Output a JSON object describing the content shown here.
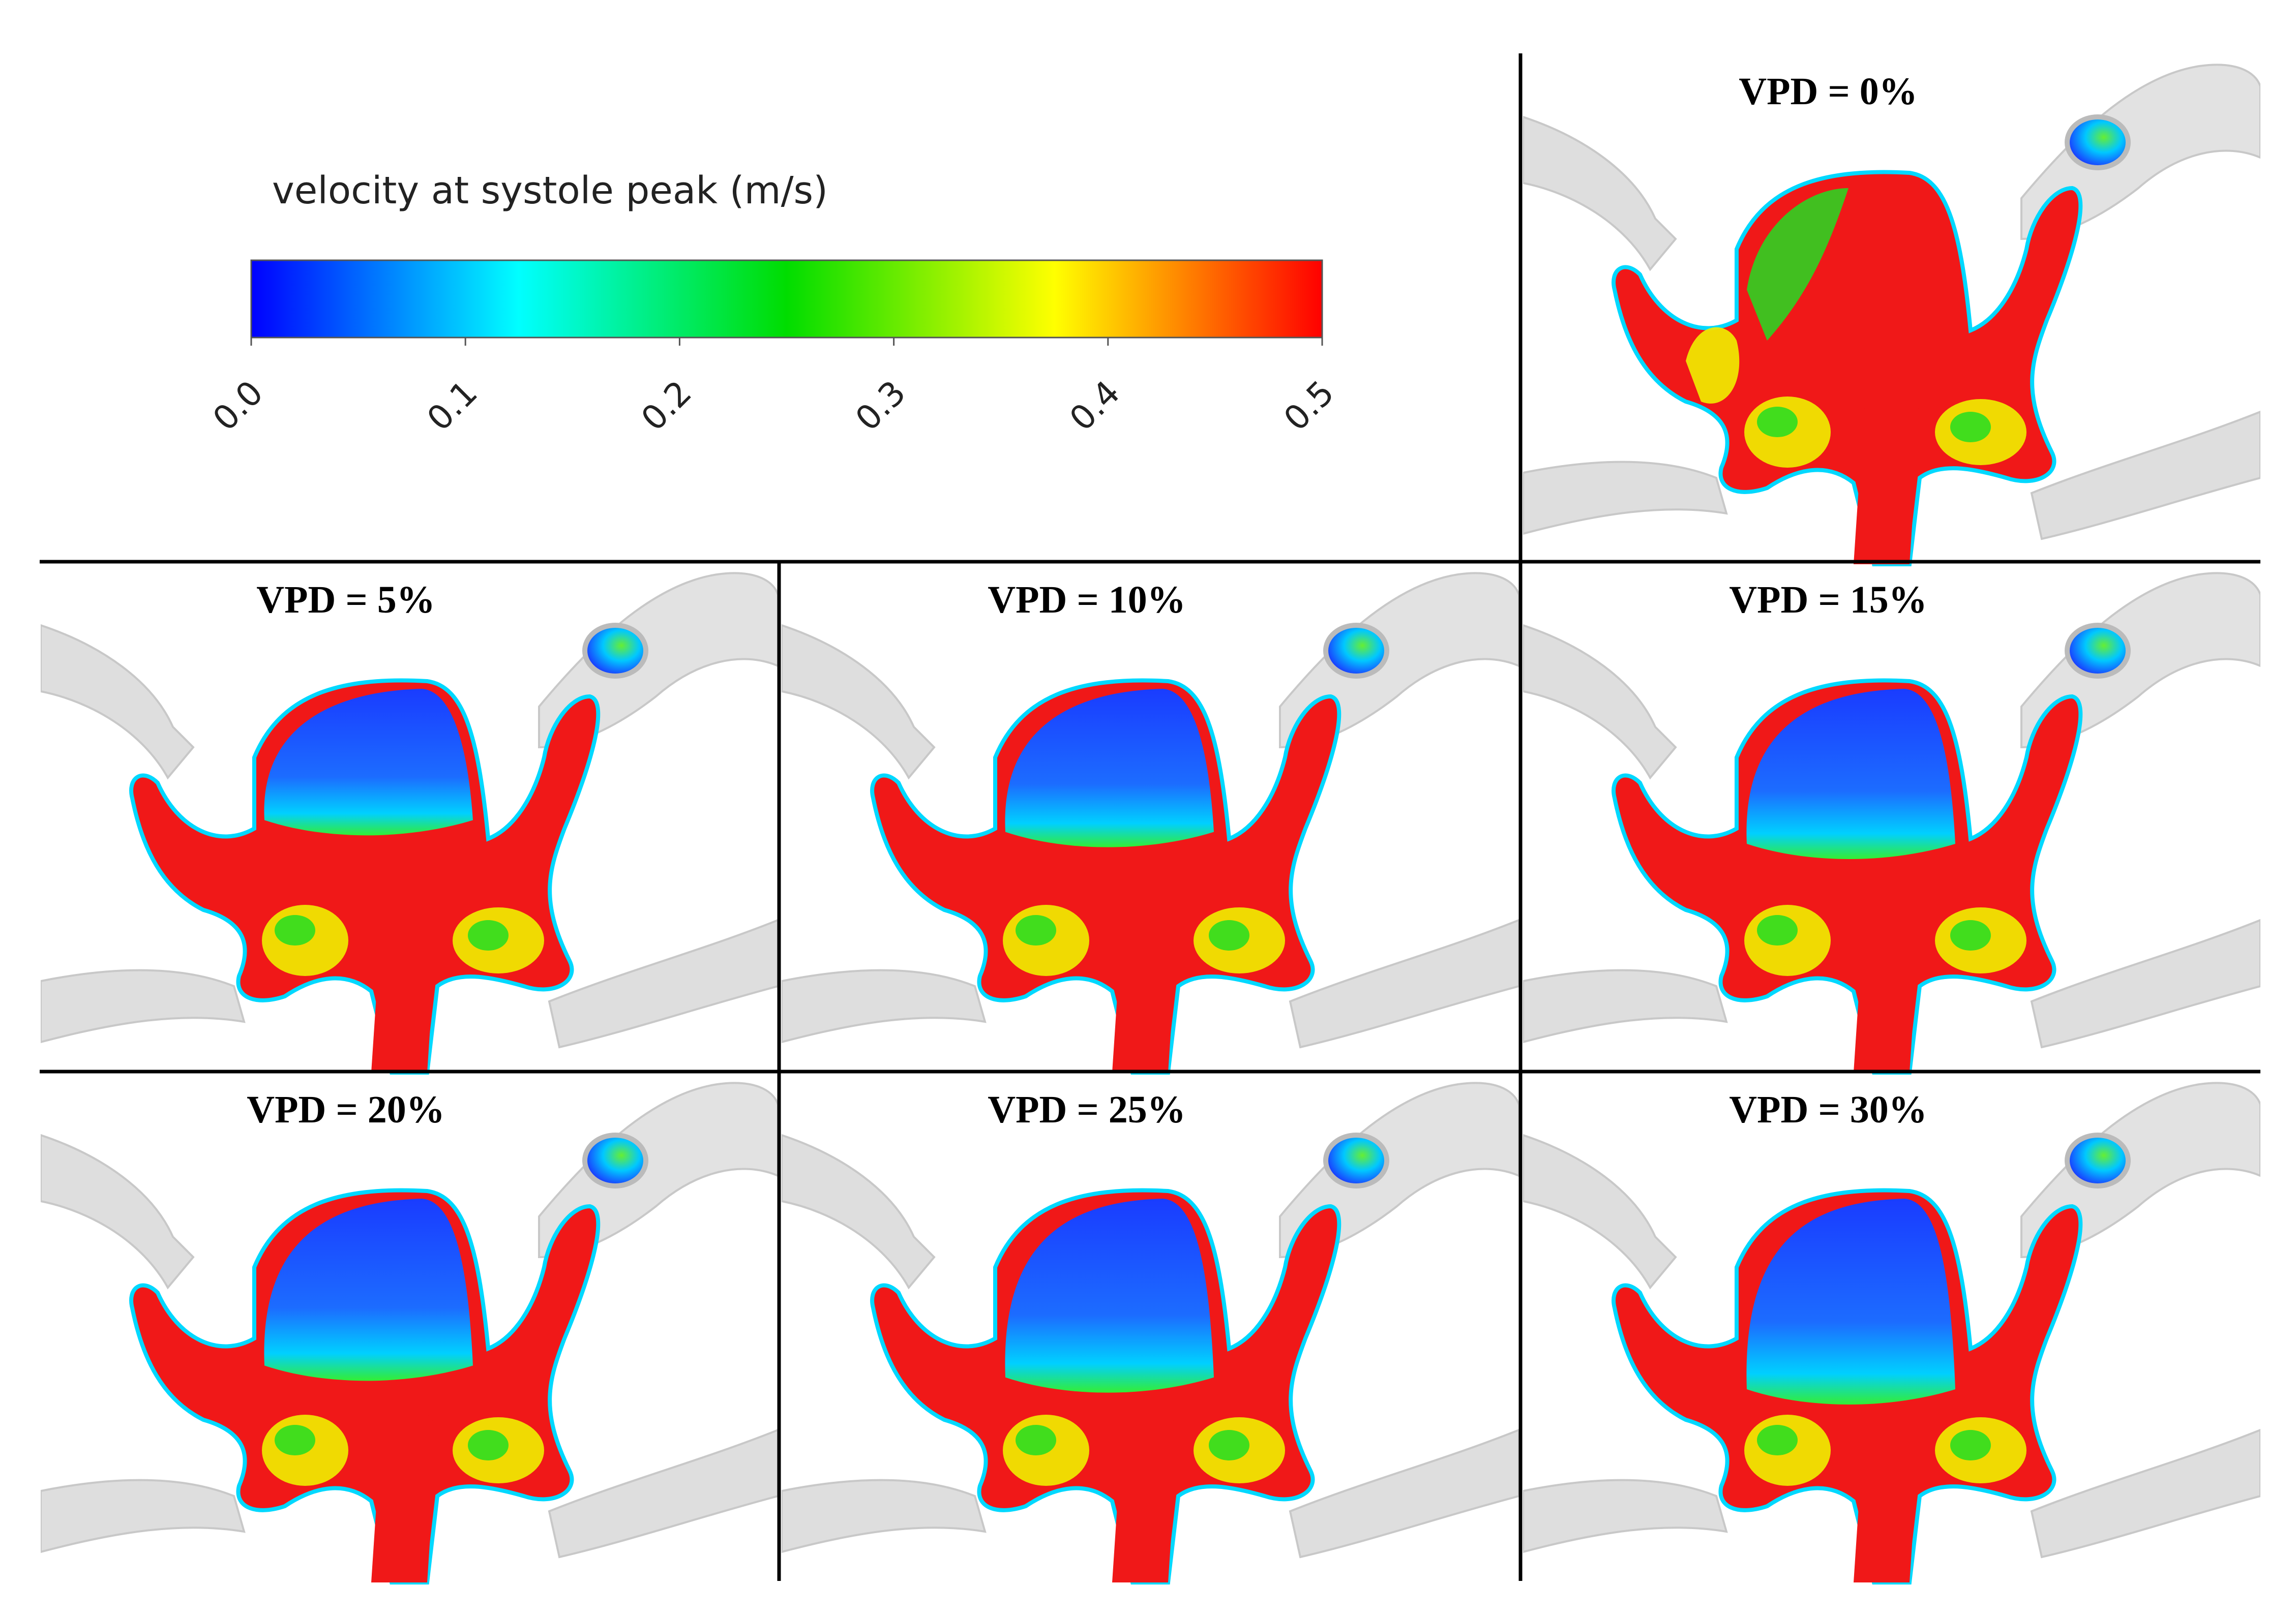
{
  "colorbar": {
    "title": "velocity at systole peak (m/s)",
    "ticks": [
      "0.0",
      "0.1",
      "0.2",
      "0.3",
      "0.4",
      "0.5"
    ],
    "range": [
      0.0,
      0.5
    ],
    "colormap": "rainbow",
    "stops": [
      "#0000ff",
      "#00ffff",
      "#00dd00",
      "#ffff00",
      "#ff0000"
    ]
  },
  "panels": [
    {
      "label": "VPD = 0%",
      "vpd": 0
    },
    {
      "label": "VPD = 5%",
      "vpd": 5
    },
    {
      "label": "VPD = 10%",
      "vpd": 10
    },
    {
      "label": "VPD = 15%",
      "vpd": 15
    },
    {
      "label": "VPD = 20%",
      "vpd": 20
    },
    {
      "label": "VPD = 25%",
      "vpd": 25
    },
    {
      "label": "VPD = 30%",
      "vpd": 30
    }
  ],
  "colors": {
    "vessel": "#dcdcdc",
    "divider": "#000000",
    "blue": "#1440ff",
    "cyan": "#00d8ff",
    "green": "#22dd22",
    "yellow": "#f0f000",
    "red": "#f01818"
  }
}
